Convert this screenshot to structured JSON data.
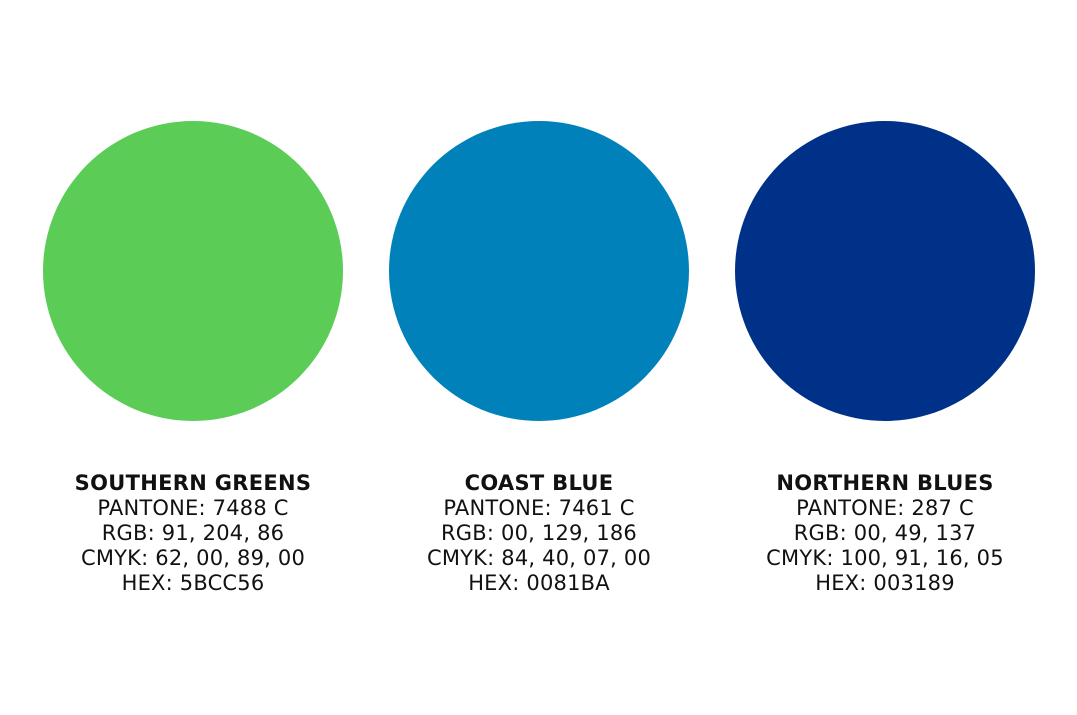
{
  "swatches": [
    {
      "name": "SOUTHERN GREENS",
      "color": "#5BCC56",
      "pantone": "PANTONE: 7488 C",
      "rgb": "RGB: 91, 204, 86",
      "cmyk": "CMYK: 62, 00, 89, 00",
      "hex": "HEX: 5BCC56"
    },
    {
      "name": "COAST BLUE",
      "color": "#0081BA",
      "pantone": "PANTONE: 7461 C",
      "rgb": "RGB: 00, 129, 186",
      "cmyk": "CMYK: 84, 40, 07, 00",
      "hex": "HEX: 0081BA"
    },
    {
      "name": "NORTHERN BLUES",
      "color": "#003189",
      "pantone": "PANTONE: 287 C",
      "rgb": "RGB: 00, 49, 137",
      "cmyk": "CMYK: 100, 91, 16, 05",
      "hex": "HEX: 003189"
    }
  ]
}
